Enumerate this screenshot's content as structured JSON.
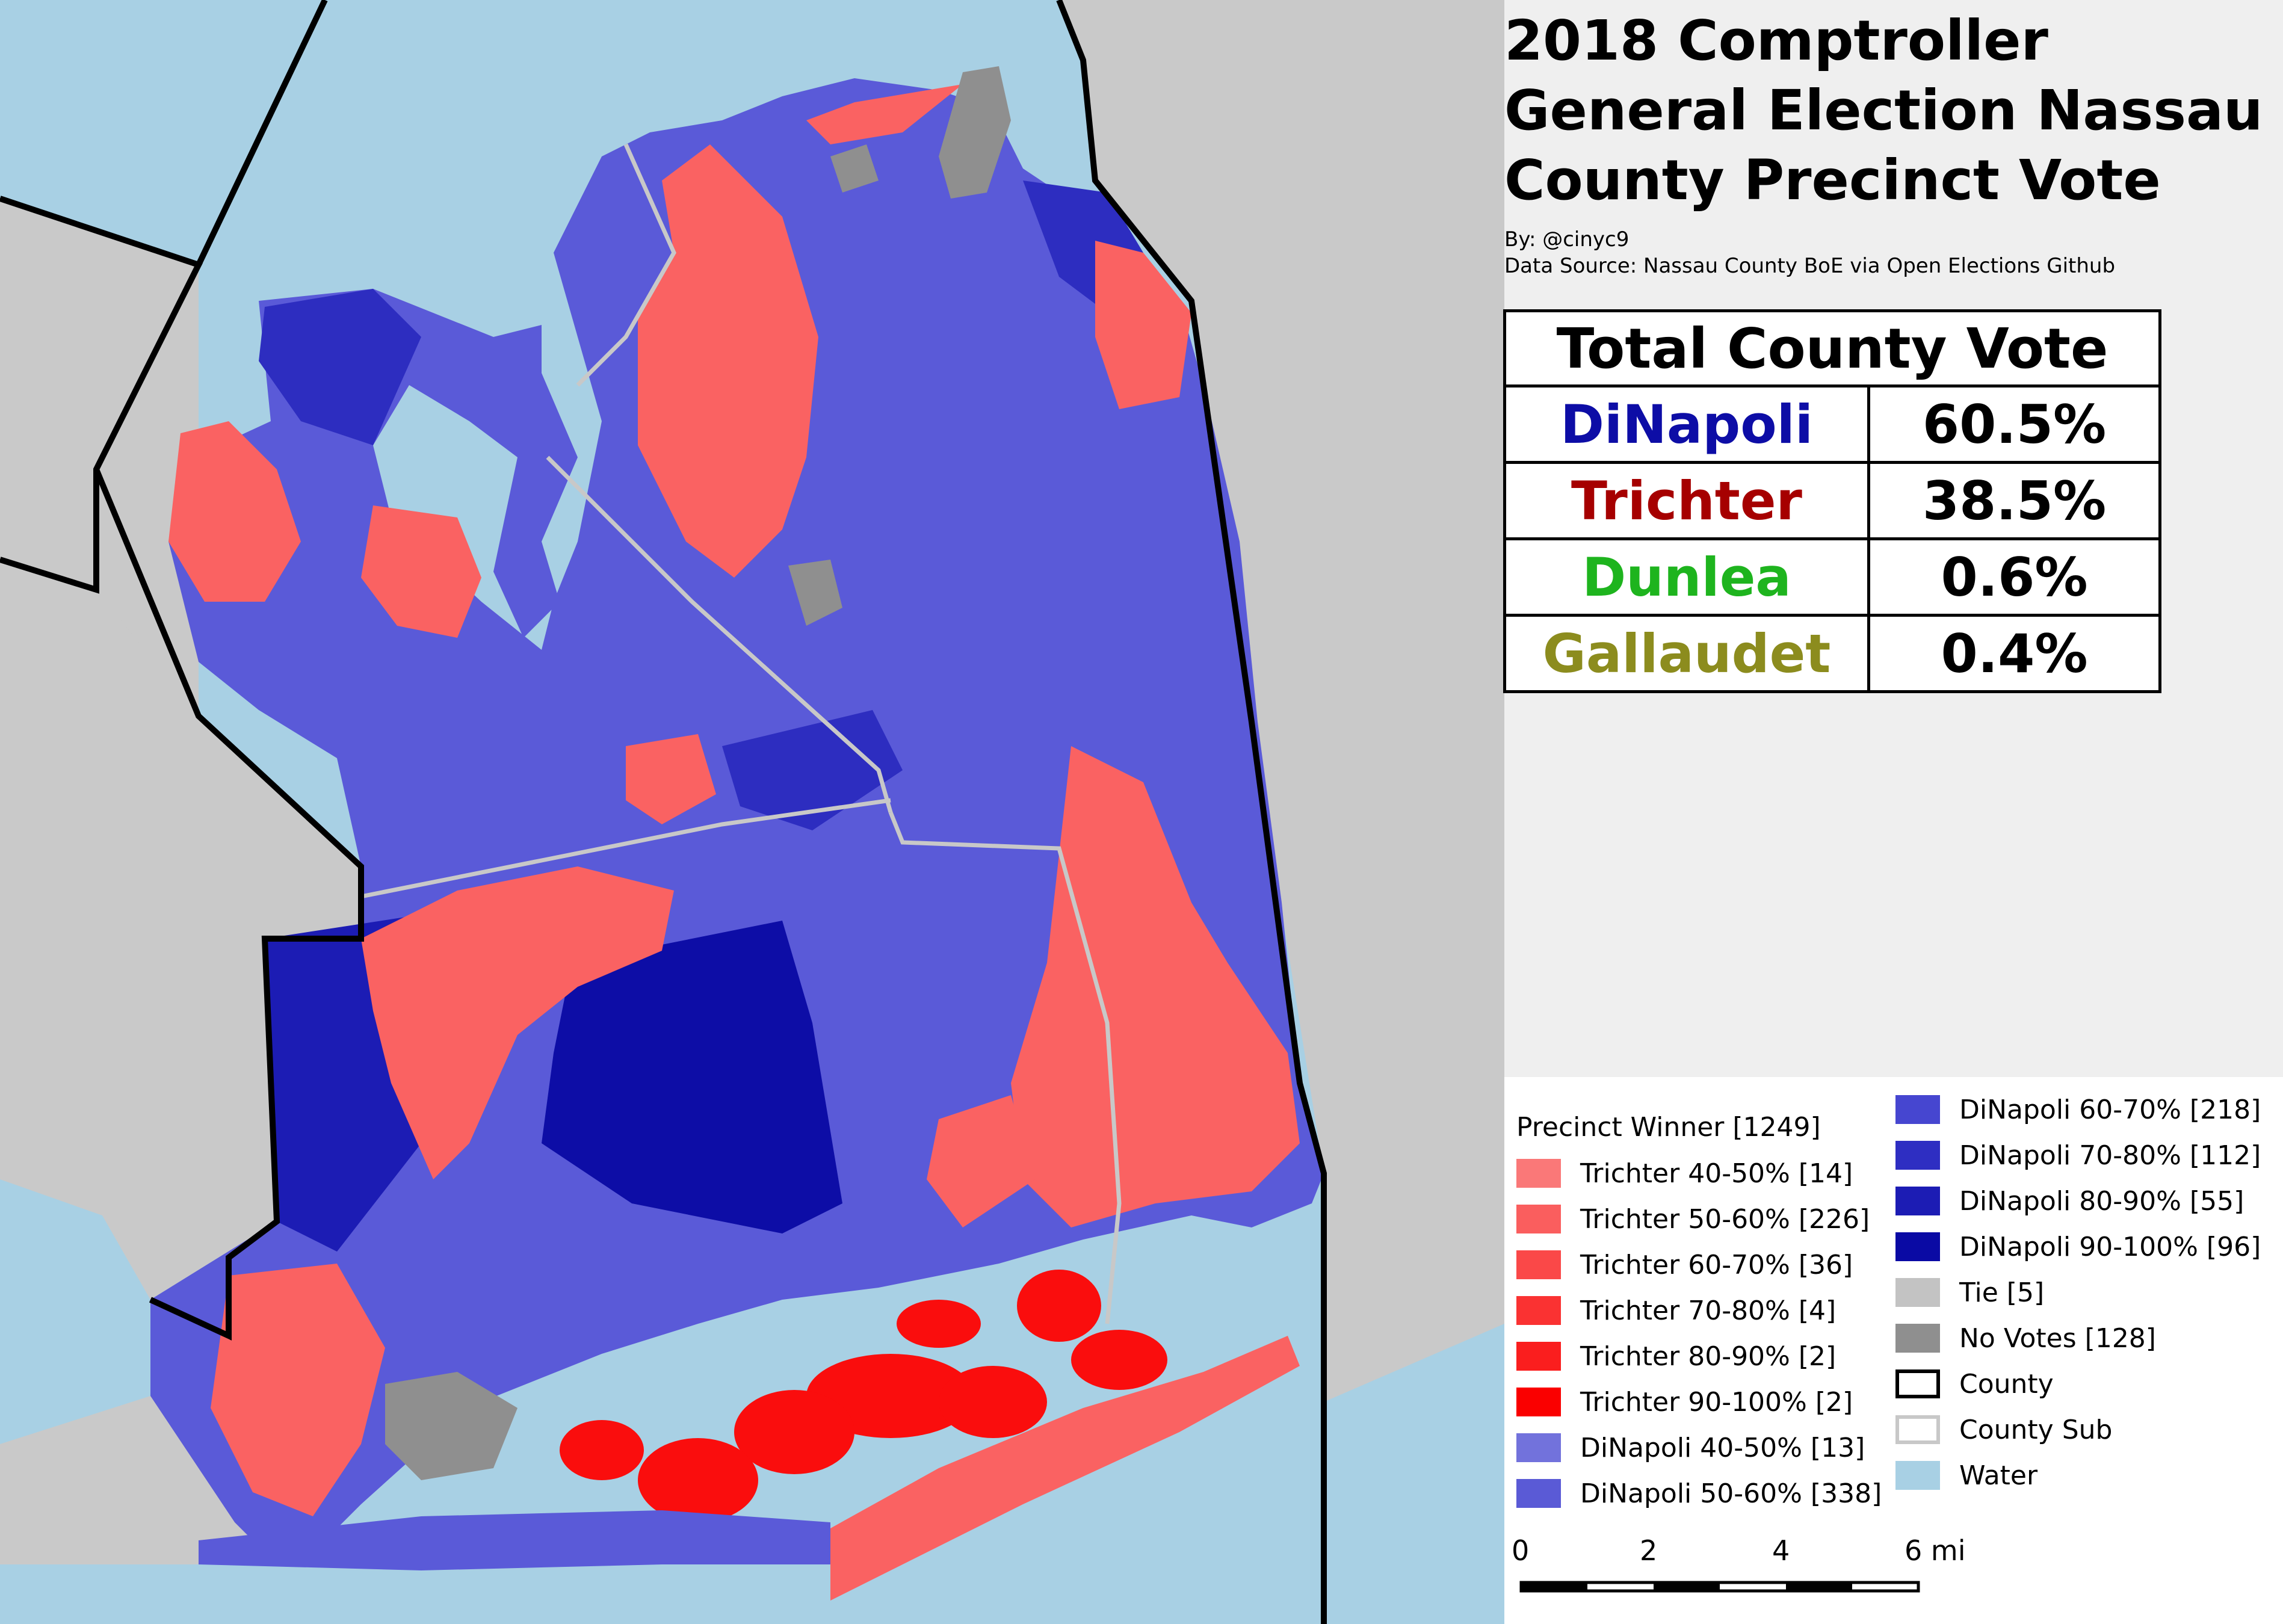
{
  "title": "2018 Comptroller General Election Nassau County Precinct Vote",
  "byline": "By: @cinyc9",
  "source": "Data Source: Nassau County BoE via Open Elections Github",
  "colors": {
    "water": "#a8d0e4",
    "land_outside": "#c9c9c9",
    "dinapoli_50_60": "#5a5ad8",
    "dinapoli_70_80": "#2d2dc0",
    "dinapoli_90_100": "#0d0da6",
    "trichter_50_60": "#fa6262",
    "trichter_90_100": "#fa0d0d",
    "no_votes": "#8f8f8f"
  },
  "vote_table": {
    "header": "Total County Vote",
    "rows": [
      {
        "candidate": "DiNapoli",
        "pct": "60.5%",
        "color": "#0d0da6"
      },
      {
        "candidate": "Trichter",
        "pct": "38.5%",
        "color": "#a60000"
      },
      {
        "candidate": "Dunlea",
        "pct": "0.6%",
        "color": "#1eb41e"
      },
      {
        "candidate": "Gallaudet",
        "pct": "0.4%",
        "color": "#8c8c1e"
      }
    ]
  },
  "legend": {
    "title": "Precinct Winner [1249]",
    "items_col1": [
      {
        "label": "Trichter 40-50% [14]",
        "color": "#fa7878"
      },
      {
        "label": "Trichter 50-60% [226]",
        "color": "#fa5e5e"
      },
      {
        "label": "Trichter 60-70% [36]",
        "color": "#fa4848"
      },
      {
        "label": "Trichter 70-80% [4]",
        "color": "#fa3232"
      },
      {
        "label": "Trichter 80-90% [2]",
        "color": "#fa1e1e"
      },
      {
        "label": "Trichter 90-100% [2]",
        "color": "#fa0000"
      },
      {
        "label": "DiNapoli 40-50% [13]",
        "color": "#7272dc"
      },
      {
        "label": "DiNapoli 50-60% [338]",
        "color": "#5a5ad6"
      }
    ],
    "items_col2": [
      {
        "label": "DiNapoli 60-70% [218]",
        "color": "#4646d0",
        "border": ""
      },
      {
        "label": "DiNapoli 70-80% [112]",
        "color": "#2e2ec2",
        "border": ""
      },
      {
        "label": "DiNapoli 80-90% [55]",
        "color": "#1c1cb4",
        "border": ""
      },
      {
        "label": "DiNapoli 90-100% [96]",
        "color": "#0a0aa4",
        "border": ""
      },
      {
        "label": "Tie [5]",
        "color": "#c3c3c3",
        "border": ""
      },
      {
        "label": "No Votes [128]",
        "color": "#8f8f8f",
        "border": ""
      },
      {
        "label": "County",
        "color": "#ffffff",
        "border": "#000000"
      },
      {
        "label": "County Sub",
        "color": "#ffffff",
        "border": "#c8c8c8"
      },
      {
        "label": "Water",
        "color": "#a8d0e4",
        "border": ""
      }
    ]
  },
  "scale": {
    "ticks": [
      "0",
      "2",
      "4",
      "6 mi"
    ]
  }
}
